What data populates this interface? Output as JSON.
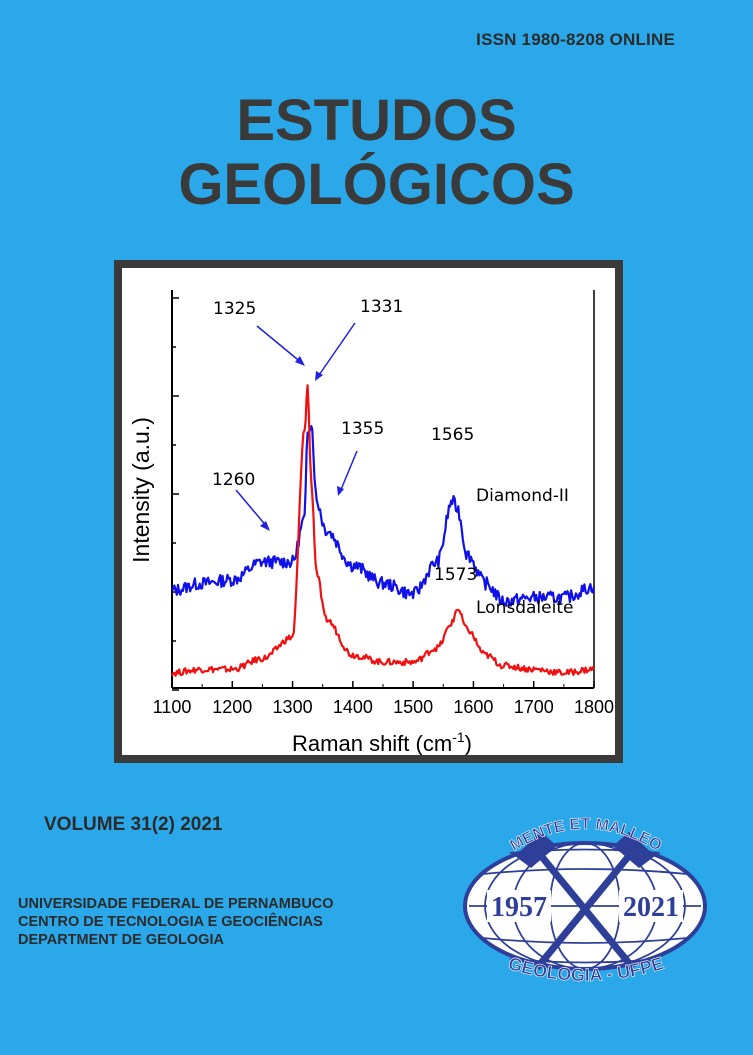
{
  "header": {
    "issn": "ISSN 1980-8208 ONLINE",
    "title_line1": "ESTUDOS",
    "title_line2": "GEOLÓGICOS"
  },
  "figure": {
    "ylabel": "Intensity (a.u.)",
    "xlabel_main": "Raman shift (cm",
    "xlabel_sup": "-1",
    "xlabel_end": ")",
    "x_ticks": [
      "1100",
      "1200",
      "1300",
      "1400",
      "1500",
      "1600",
      "1700",
      "1800"
    ],
    "peak_labels": {
      "p1325": "1325",
      "p1331": "1331",
      "p1355": "1355",
      "p1565": "1565",
      "p1260": "1260",
      "p1573": "1573"
    },
    "series_labels": {
      "diamond": "Diamond-II",
      "lonsdaleite": "Lonsdaleite"
    },
    "colors": {
      "diamond": "#1010e8",
      "lonsdaleite": "#f01010",
      "annotation": "#2020e0"
    }
  },
  "chart_data": {
    "type": "line",
    "xlabel": "Raman shift (cm-1)",
    "ylabel": "Intensity (a.u.)",
    "xlim": [
      1100,
      1800
    ],
    "x": [
      1100,
      1150,
      1200,
      1250,
      1300,
      1320,
      1325,
      1331,
      1340,
      1355,
      1400,
      1450,
      1500,
      1540,
      1565,
      1573,
      1590,
      1620,
      1650,
      1700,
      1750,
      1800
    ],
    "series": [
      {
        "name": "Diamond-II",
        "values": [
          0.25,
          0.27,
          0.28,
          0.33,
          0.33,
          0.45,
          0.7,
          0.72,
          0.5,
          0.42,
          0.32,
          0.27,
          0.24,
          0.33,
          0.5,
          0.48,
          0.35,
          0.27,
          0.22,
          0.23,
          0.23,
          0.26
        ]
      },
      {
        "name": "Lonsdaleite",
        "values": [
          0.02,
          0.03,
          0.03,
          0.06,
          0.12,
          0.7,
          0.82,
          0.55,
          0.3,
          0.17,
          0.07,
          0.05,
          0.05,
          0.09,
          0.16,
          0.2,
          0.14,
          0.07,
          0.04,
          0.03,
          0.02,
          0.03
        ]
      }
    ]
  },
  "footer": {
    "volume": "VOLUME 31(2) 2021",
    "dept_line1": "UNIVERSIDADE FEDERAL DE PERNAMBUCO",
    "dept_line2": "CENTRO DE TECNOLOGIA E GEOCIÊNCIAS",
    "dept_line3": "DEPARTMENT DE GEOLOGIA"
  },
  "logo": {
    "motto": "MENTE ET MALLEO",
    "year_start": "1957",
    "year_end": "2021",
    "bottom": "GEOLOGIA - UFPE",
    "color": "#2e3f9a"
  }
}
